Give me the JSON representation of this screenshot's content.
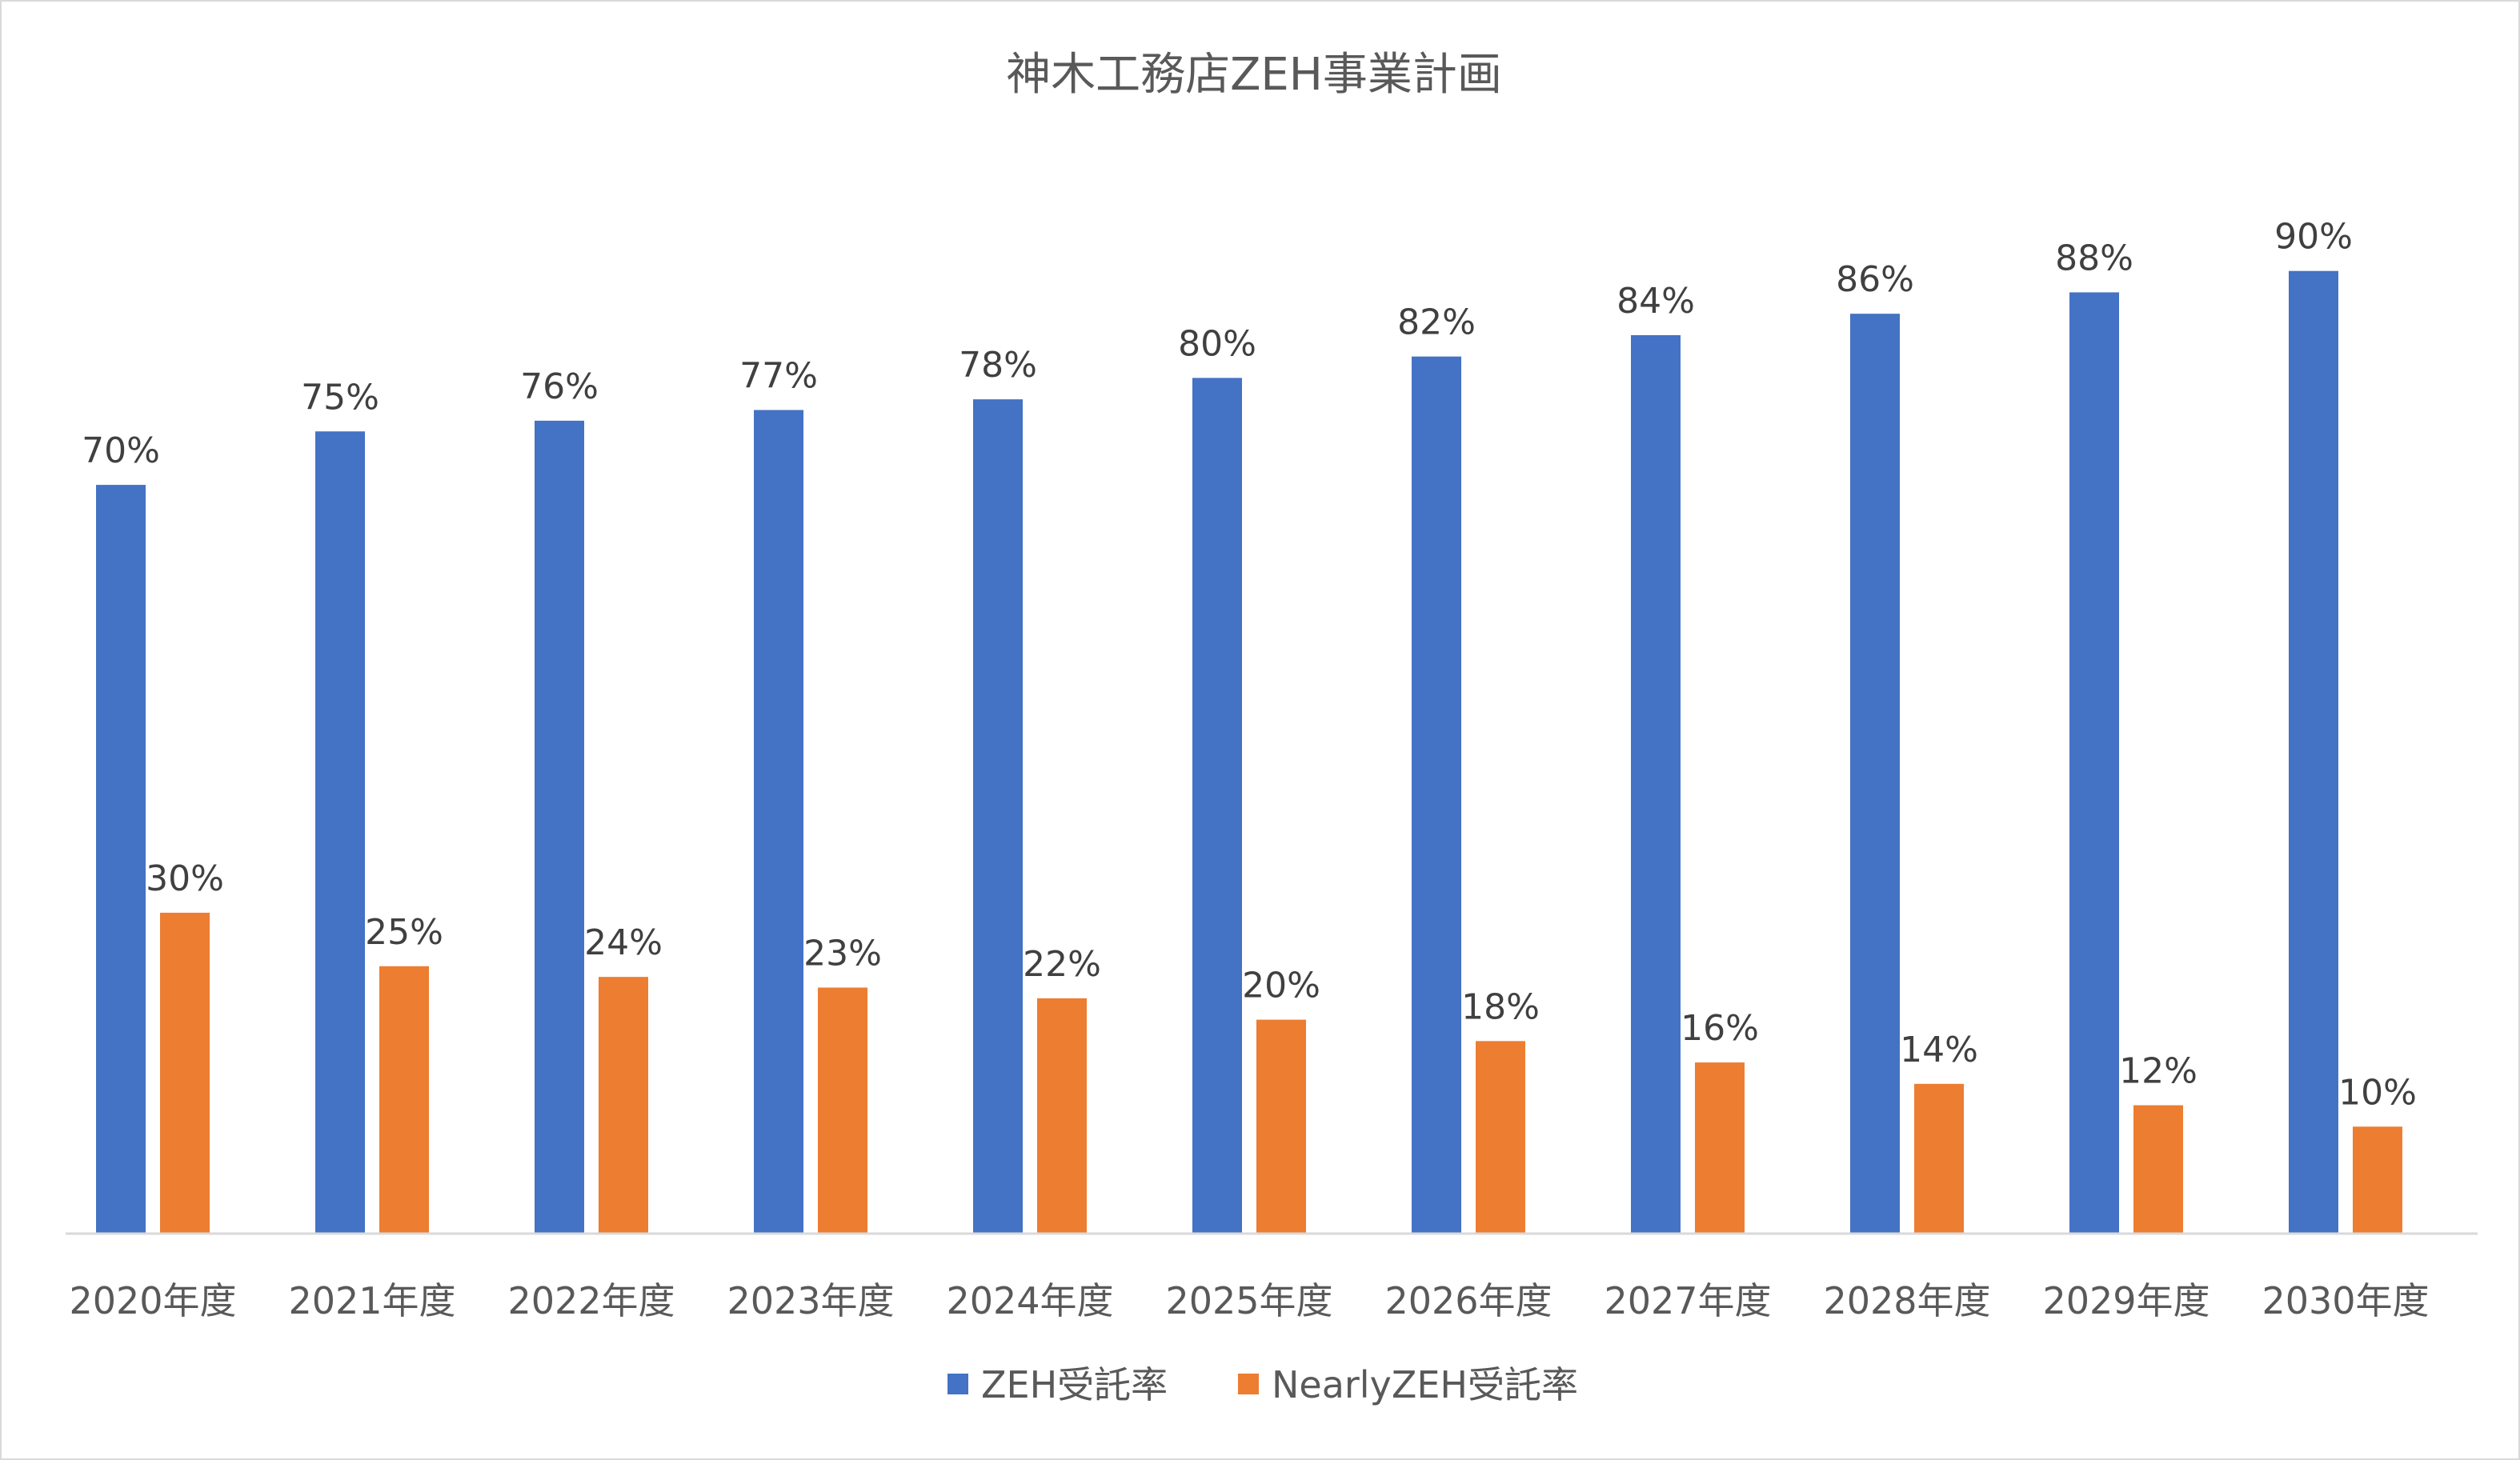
{
  "chart_data": {
    "type": "bar",
    "title": "神木工務店ZEH事業計画",
    "xlabel": "",
    "ylabel": "",
    "ylim": [
      0,
      100
    ],
    "grid": false,
    "legend_position": "bottom",
    "categories": [
      "2020年度",
      "2021年度",
      "2022年度",
      "2023年度",
      "2024年度",
      "2025年度",
      "2026年度",
      "2027年度",
      "2028年度",
      "2029年度",
      "2030年度"
    ],
    "series": [
      {
        "name": "ZEH受託率",
        "color": "#4472C4",
        "values": [
          70,
          75,
          76,
          77,
          78,
          80,
          82,
          84,
          86,
          88,
          90
        ],
        "labels": [
          "70%",
          "75%",
          "76%",
          "77%",
          "78%",
          "80%",
          "82%",
          "84%",
          "86%",
          "88%",
          "90%"
        ]
      },
      {
        "name": "NearlyZEH受託率",
        "color": "#ED7D31",
        "values": [
          30,
          25,
          24,
          23,
          22,
          20,
          18,
          16,
          14,
          12,
          10
        ],
        "labels": [
          "30%",
          "25%",
          "24%",
          "23%",
          "22%",
          "20%",
          "18%",
          "16%",
          "14%",
          "12%",
          "10%"
        ]
      }
    ]
  }
}
